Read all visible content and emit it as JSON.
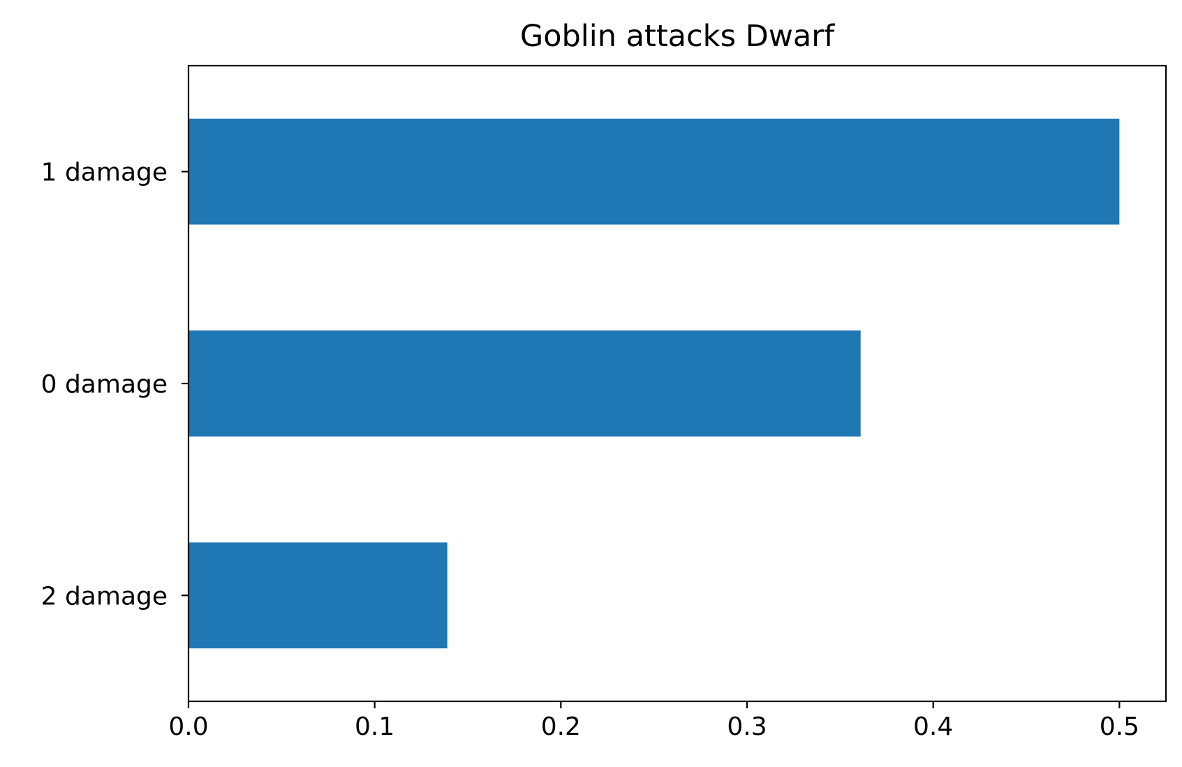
{
  "chart_data": {
    "type": "bar",
    "orientation": "horizontal",
    "title": "Goblin attacks Dwarf",
    "xlabel": "",
    "ylabel": "",
    "categories": [
      "2 damage",
      "0 damage",
      "1 damage"
    ],
    "values": [
      0.139,
      0.361,
      0.5
    ],
    "xlim": [
      0,
      0.525
    ],
    "xticks": [
      0.0,
      0.1,
      0.2,
      0.3,
      0.4,
      0.5
    ],
    "xtick_labels": [
      "0.0",
      "0.1",
      "0.2",
      "0.3",
      "0.4",
      "0.5"
    ],
    "grid": false,
    "legend": "none",
    "bar_color": "#1f77b4",
    "axis_color": "#000000"
  }
}
